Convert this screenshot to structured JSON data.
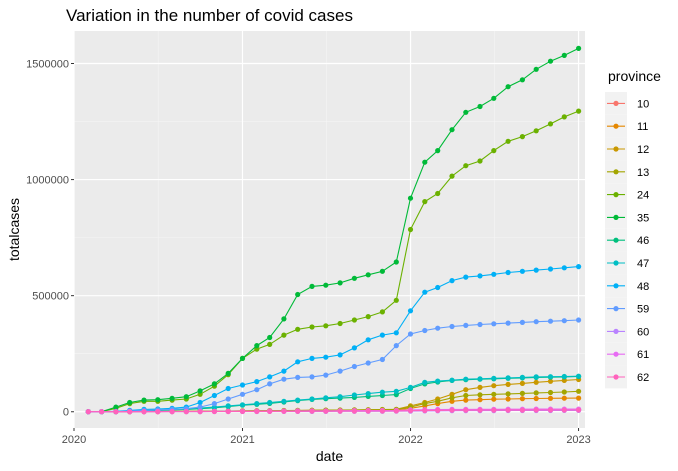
{
  "chart_data": {
    "type": "line",
    "title": "Variation in the number of covid cases",
    "xlabel": "date",
    "ylabel": "totalcases",
    "x_ticks": [
      "2020",
      "2021",
      "2022",
      "2023"
    ],
    "y_ticks": [
      0,
      500000,
      1000000,
      1500000
    ],
    "y_tick_labels": [
      "0",
      "500000",
      "1000000",
      "1500000"
    ],
    "xlim": [
      "2020-01-01",
      "2023-01-15"
    ],
    "ylim": [
      -70000,
      1640000
    ],
    "legend": {
      "title": "province",
      "position": "right"
    },
    "grid": true,
    "background": "#ebebeb",
    "x": [
      "2020-02-01",
      "2020-03-01",
      "2020-04-01",
      "2020-05-01",
      "2020-06-01",
      "2020-07-01",
      "2020-08-01",
      "2020-09-01",
      "2020-10-01",
      "2020-11-01",
      "2020-12-01",
      "2021-01-01",
      "2021-02-01",
      "2021-03-01",
      "2021-04-01",
      "2021-05-01",
      "2021-06-01",
      "2021-07-01",
      "2021-08-01",
      "2021-09-01",
      "2021-10-01",
      "2021-11-01",
      "2021-12-01",
      "2022-01-01",
      "2022-02-01",
      "2022-03-01",
      "2022-04-01",
      "2022-05-01",
      "2022-06-01",
      "2022-07-01",
      "2022-08-01",
      "2022-09-01",
      "2022-10-01",
      "2022-11-01",
      "2022-12-01",
      "2023-01-01"
    ],
    "series": [
      {
        "name": "10",
        "color": "#F8766D",
        "values": [
          0,
          0,
          100,
          300,
          600,
          800,
          1000,
          1200,
          1500,
          1800,
          2200,
          2500,
          2800,
          3000,
          3200,
          3400,
          3600,
          3800,
          4000,
          4200,
          4500,
          4800,
          5100,
          6000,
          7000,
          7500,
          8000,
          8200,
          8400,
          8500,
          8600,
          8700,
          8800,
          8900,
          9000,
          9000
        ]
      },
      {
        "name": "11",
        "color": "#E58700",
        "values": [
          0,
          0,
          200,
          500,
          800,
          1000,
          1200,
          1500,
          1800,
          2200,
          2700,
          3200,
          3600,
          4000,
          4400,
          4800,
          5200,
          5600,
          6000,
          6500,
          7000,
          7500,
          8000,
          15000,
          25000,
          35000,
          45000,
          50000,
          52000,
          54000,
          55000,
          56000,
          57000,
          58000,
          58500,
          59000
        ]
      },
      {
        "name": "12",
        "color": "#C99800",
        "values": [
          0,
          0,
          300,
          700,
          1100,
          1400,
          1700,
          2000,
          2400,
          2900,
          3400,
          4000,
          4500,
          5000,
          5500,
          6000,
          6500,
          7000,
          7500,
          8000,
          8800,
          9500,
          10500,
          25000,
          40000,
          55000,
          75000,
          95000,
          105000,
          112000,
          118000,
          122000,
          127000,
          131000,
          135000,
          139000
        ]
      },
      {
        "name": "13",
        "color": "#A3A500",
        "values": [
          0,
          0,
          200,
          600,
          900,
          1200,
          1500,
          1800,
          2200,
          2600,
          3100,
          3600,
          4000,
          4500,
          5000,
          5500,
          6000,
          6500,
          7000,
          7600,
          8300,
          9000,
          9800,
          20000,
          35000,
          45000,
          60000,
          70000,
          73000,
          75000,
          77000,
          79000,
          81000,
          83000,
          85000,
          88000
        ]
      },
      {
        "name": "24",
        "color": "#6BB100",
        "values": [
          0,
          0,
          15000,
          35000,
          45000,
          45000,
          50000,
          55000,
          75000,
          110000,
          160000,
          230000,
          270000,
          290000,
          330000,
          355000,
          365000,
          370000,
          380000,
          395000,
          410000,
          430000,
          480000,
          785000,
          905000,
          940000,
          1015000,
          1060000,
          1080000,
          1125000,
          1165000,
          1185000,
          1210000,
          1240000,
          1270000,
          1295000
        ]
      },
      {
        "name": "35",
        "color": "#00BA38",
        "values": [
          0,
          0,
          20000,
          40000,
          50000,
          52000,
          58000,
          65000,
          90000,
          120000,
          165000,
          230000,
          285000,
          320000,
          400000,
          505000,
          540000,
          545000,
          555000,
          575000,
          590000,
          605000,
          645000,
          920000,
          1075000,
          1125000,
          1215000,
          1290000,
          1315000,
          1350000,
          1400000,
          1430000,
          1475000,
          1510000,
          1535000,
          1565000
        ]
      },
      {
        "name": "46",
        "color": "#00BF7D",
        "values": [
          0,
          0,
          500,
          2000,
          4000,
          6000,
          8000,
          10000,
          13000,
          17000,
          22000,
          28000,
          32000,
          36000,
          42000,
          48000,
          53000,
          56000,
          59000,
          62000,
          66000,
          70000,
          74000,
          100000,
          120000,
          128000,
          135000,
          138000,
          140000,
          142000,
          144000,
          146000,
          148000,
          149000,
          150000,
          152000
        ]
      },
      {
        "name": "47",
        "color": "#00BFC4",
        "values": [
          0,
          0,
          800,
          3000,
          6000,
          8000,
          10000,
          12500,
          16000,
          20000,
          25000,
          30000,
          35000,
          40000,
          45000,
          50000,
          55000,
          60000,
          65000,
          72000,
          78000,
          84000,
          88000,
          105000,
          127000,
          132000,
          136000,
          140000,
          142000,
          144000,
          146000,
          148000,
          150000,
          151000,
          152000,
          153000
        ]
      },
      {
        "name": "48",
        "color": "#00B0F6",
        "values": [
          0,
          0,
          2000,
          6000,
          10000,
          12000,
          15000,
          20000,
          40000,
          70000,
          100000,
          115000,
          130000,
          150000,
          175000,
          215000,
          230000,
          235000,
          245000,
          275000,
          310000,
          330000,
          340000,
          435000,
          515000,
          535000,
          565000,
          580000,
          585000,
          592000,
          600000,
          605000,
          610000,
          615000,
          620000,
          625000
        ]
      },
      {
        "name": "59",
        "color": "#619CFF",
        "values": [
          0,
          0,
          1000,
          3000,
          6000,
          8000,
          10000,
          13000,
          20000,
          35000,
          55000,
          75000,
          95000,
          120000,
          140000,
          148000,
          150000,
          158000,
          175000,
          195000,
          210000,
          225000,
          285000,
          335000,
          350000,
          360000,
          367000,
          372000,
          376000,
          379000,
          382000,
          385000,
          388000,
          390000,
          392000,
          395000
        ]
      },
      {
        "name": "60",
        "color": "#B983FF",
        "values": [
          0,
          0,
          100,
          200,
          400,
          500,
          600,
          700,
          800,
          900,
          1000,
          1100,
          1200,
          1300,
          1400,
          1500,
          1600,
          1700,
          1800,
          1900,
          2000,
          2100,
          2200,
          3000,
          3500,
          4000,
          4500,
          4800,
          5000,
          5100,
          5200,
          5300,
          5400,
          5500,
          5600,
          5700
        ]
      },
      {
        "name": "61",
        "color": "#E76BF3",
        "values": [
          0,
          0,
          150,
          400,
          700,
          900,
          1100,
          1300,
          1600,
          1900,
          2200,
          2500,
          2800,
          3100,
          3400,
          3700,
          4000,
          4300,
          4600,
          4900,
          5200,
          5500,
          5800,
          8000,
          9000,
          9500,
          10000,
          10300,
          10500,
          10700,
          10900,
          11000,
          11200,
          11300,
          11400,
          11500
        ]
      },
      {
        "name": "62",
        "color": "#FF62BC",
        "values": [
          0,
          0,
          50,
          150,
          300,
          400,
          500,
          600,
          750,
          900,
          1100,
          1300,
          1500,
          1700,
          1900,
          2100,
          2300,
          2500,
          2700,
          2900,
          3100,
          3300,
          3500,
          4500,
          5500,
          6000,
          6500,
          6800,
          7000,
          7100,
          7200,
          7300,
          7400,
          7500,
          7600,
          7700
        ]
      }
    ]
  }
}
